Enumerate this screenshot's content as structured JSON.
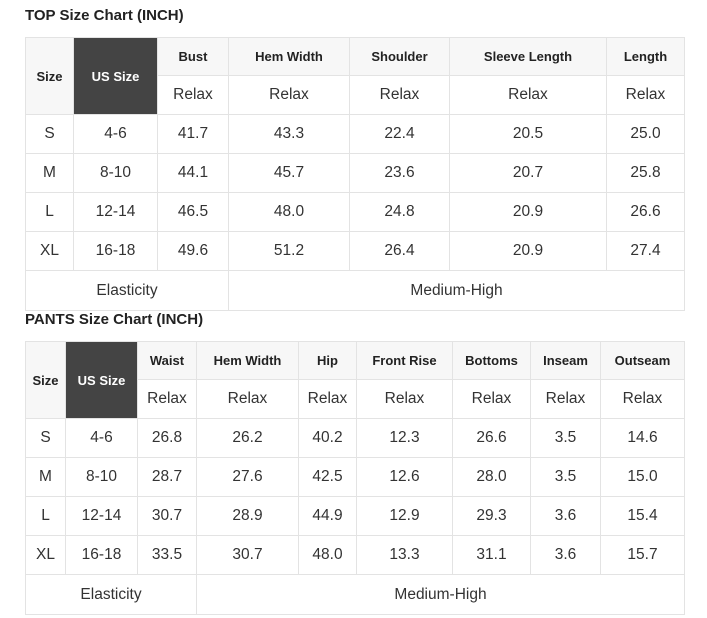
{
  "top": {
    "title": "TOP Size Chart (INCH)",
    "headers": [
      "Size",
      "US Size",
      "Bust",
      "Hem Width",
      "Shoulder",
      "Sleeve Length",
      "Length"
    ],
    "subheader": "Relax",
    "rows": [
      [
        "S",
        "4-6",
        "41.7",
        "43.3",
        "22.4",
        "20.5",
        "25.0"
      ],
      [
        "M",
        "8-10",
        "44.1",
        "45.7",
        "23.6",
        "20.7",
        "25.8"
      ],
      [
        "L",
        "12-14",
        "46.5",
        "48.0",
        "24.8",
        "20.9",
        "26.6"
      ],
      [
        "XL",
        "16-18",
        "49.6",
        "51.2",
        "26.4",
        "20.9",
        "27.4"
      ]
    ],
    "elasticity_label": "Elasticity",
    "elasticity_value": "Medium-High"
  },
  "pants": {
    "title": "PANTS Size Chart (INCH)",
    "headers": [
      "Size",
      "US Size",
      "Waist",
      "Hem Width",
      "Hip",
      "Front Rise",
      "Bottoms",
      "Inseam",
      "Outseam"
    ],
    "subheader": "Relax",
    "rows": [
      [
        "S",
        "4-6",
        "26.8",
        "26.2",
        "40.2",
        "12.3",
        "26.6",
        "3.5",
        "14.6"
      ],
      [
        "M",
        "8-10",
        "28.7",
        "27.6",
        "42.5",
        "12.6",
        "28.0",
        "3.5",
        "15.0"
      ],
      [
        "L",
        "12-14",
        "30.7",
        "28.9",
        "44.9",
        "12.9",
        "29.3",
        "3.6",
        "15.4"
      ],
      [
        "XL",
        "16-18",
        "33.5",
        "30.7",
        "48.0",
        "13.3",
        "31.1",
        "3.6",
        "15.7"
      ]
    ],
    "elasticity_label": "Elasticity",
    "elasticity_value": "Medium-High"
  },
  "colors": {
    "us_size_bg": "#444444",
    "header_bg": "#f7f7f7",
    "border": "#e3e3e3"
  }
}
